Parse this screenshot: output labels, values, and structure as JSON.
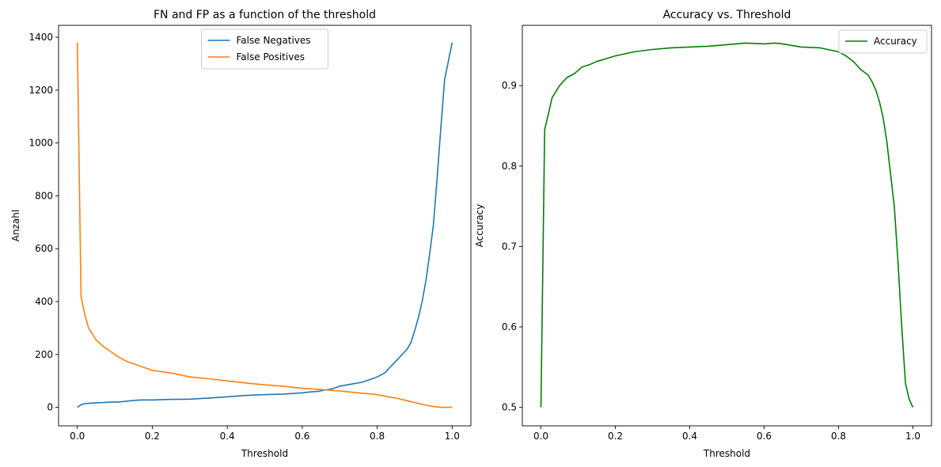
{
  "chart_data": [
    {
      "type": "line",
      "title": "FN and FP as a function of the threshold",
      "xlabel": "Threshold",
      "ylabel": "Anzahl",
      "xlim": [
        -0.05,
        1.05
      ],
      "ylim": [
        -70,
        1445
      ],
      "xticks": [
        0.0,
        0.2,
        0.4,
        0.6,
        0.8,
        1.0
      ],
      "xtick_labels": [
        "0.0",
        "0.2",
        "0.4",
        "0.6",
        "0.8",
        "1.0"
      ],
      "yticks": [
        0,
        200,
        400,
        600,
        800,
        1000,
        1200,
        1400
      ],
      "ytick_labels": [
        "0",
        "200",
        "400",
        "600",
        "800",
        "1000",
        "1200",
        "1400"
      ],
      "legend": "upper-center",
      "grid": false,
      "series": [
        {
          "name": "False Negatives",
          "color": "#1f77b4",
          "x": [
            0.0,
            0.01,
            0.02,
            0.03,
            0.05,
            0.07,
            0.09,
            0.11,
            0.13,
            0.15,
            0.17,
            0.2,
            0.25,
            0.3,
            0.35,
            0.4,
            0.45,
            0.5,
            0.55,
            0.6,
            0.62,
            0.64,
            0.66,
            0.68,
            0.7,
            0.72,
            0.74,
            0.76,
            0.78,
            0.8,
            0.82,
            0.84,
            0.86,
            0.88,
            0.89,
            0.9,
            0.91,
            0.92,
            0.93,
            0.94,
            0.95,
            0.96,
            0.97,
            0.98,
            0.99,
            1.0
          ],
          "values": [
            0,
            10,
            14,
            15,
            17,
            18,
            20,
            20,
            23,
            26,
            28,
            28,
            30,
            31,
            35,
            40,
            45,
            48,
            50,
            55,
            58,
            60,
            65,
            70,
            80,
            85,
            90,
            95,
            105,
            115,
            130,
            160,
            190,
            220,
            245,
            290,
            340,
            400,
            480,
            580,
            690,
            870,
            1060,
            1240,
            1310,
            1380
          ]
        },
        {
          "name": "False Positives",
          "color": "#ff7f0e",
          "x": [
            0.0,
            0.01,
            0.02,
            0.03,
            0.05,
            0.07,
            0.09,
            0.11,
            0.13,
            0.15,
            0.17,
            0.2,
            0.25,
            0.3,
            0.35,
            0.4,
            0.45,
            0.5,
            0.55,
            0.6,
            0.65,
            0.7,
            0.75,
            0.8,
            0.83,
            0.85,
            0.88,
            0.9,
            0.93,
            0.95,
            0.97,
            0.98,
            0.99,
            1.0
          ],
          "values": [
            1380,
            420,
            350,
            300,
            255,
            230,
            210,
            190,
            175,
            165,
            155,
            140,
            130,
            115,
            108,
            100,
            92,
            85,
            80,
            72,
            67,
            62,
            55,
            48,
            40,
            35,
            25,
            18,
            8,
            3,
            0,
            0,
            0,
            0
          ]
        }
      ]
    },
    {
      "type": "line",
      "title": "Accuracy vs. Threshold",
      "xlabel": "Threshold",
      "ylabel": "Accuracy",
      "xlim": [
        -0.05,
        1.05
      ],
      "ylim": [
        0.477,
        0.975
      ],
      "xticks": [
        0.0,
        0.2,
        0.4,
        0.6,
        0.8,
        1.0
      ],
      "xtick_labels": [
        "0.0",
        "0.2",
        "0.4",
        "0.6",
        "0.8",
        "1.0"
      ],
      "yticks": [
        0.5,
        0.6,
        0.7,
        0.8,
        0.9
      ],
      "ytick_labels": [
        "0.5",
        "0.6",
        "0.7",
        "0.8",
        "0.9"
      ],
      "legend": "upper-right",
      "grid": false,
      "series": [
        {
          "name": "Accuracy",
          "color": "#008000",
          "x": [
            0.0,
            0.01,
            0.02,
            0.03,
            0.05,
            0.07,
            0.09,
            0.11,
            0.13,
            0.15,
            0.2,
            0.25,
            0.3,
            0.35,
            0.4,
            0.45,
            0.5,
            0.55,
            0.6,
            0.63,
            0.65,
            0.7,
            0.75,
            0.8,
            0.82,
            0.84,
            0.86,
            0.88,
            0.89,
            0.9,
            0.91,
            0.92,
            0.93,
            0.94,
            0.95,
            0.96,
            0.97,
            0.98,
            0.99,
            1.0
          ],
          "values": [
            0.5,
            0.845,
            0.865,
            0.885,
            0.9,
            0.91,
            0.915,
            0.923,
            0.926,
            0.93,
            0.937,
            0.942,
            0.945,
            0.947,
            0.948,
            0.949,
            0.951,
            0.953,
            0.952,
            0.953,
            0.952,
            0.948,
            0.947,
            0.942,
            0.937,
            0.93,
            0.92,
            0.913,
            0.905,
            0.895,
            0.88,
            0.86,
            0.83,
            0.79,
            0.75,
            0.68,
            0.6,
            0.53,
            0.51,
            0.5
          ]
        }
      ]
    }
  ]
}
